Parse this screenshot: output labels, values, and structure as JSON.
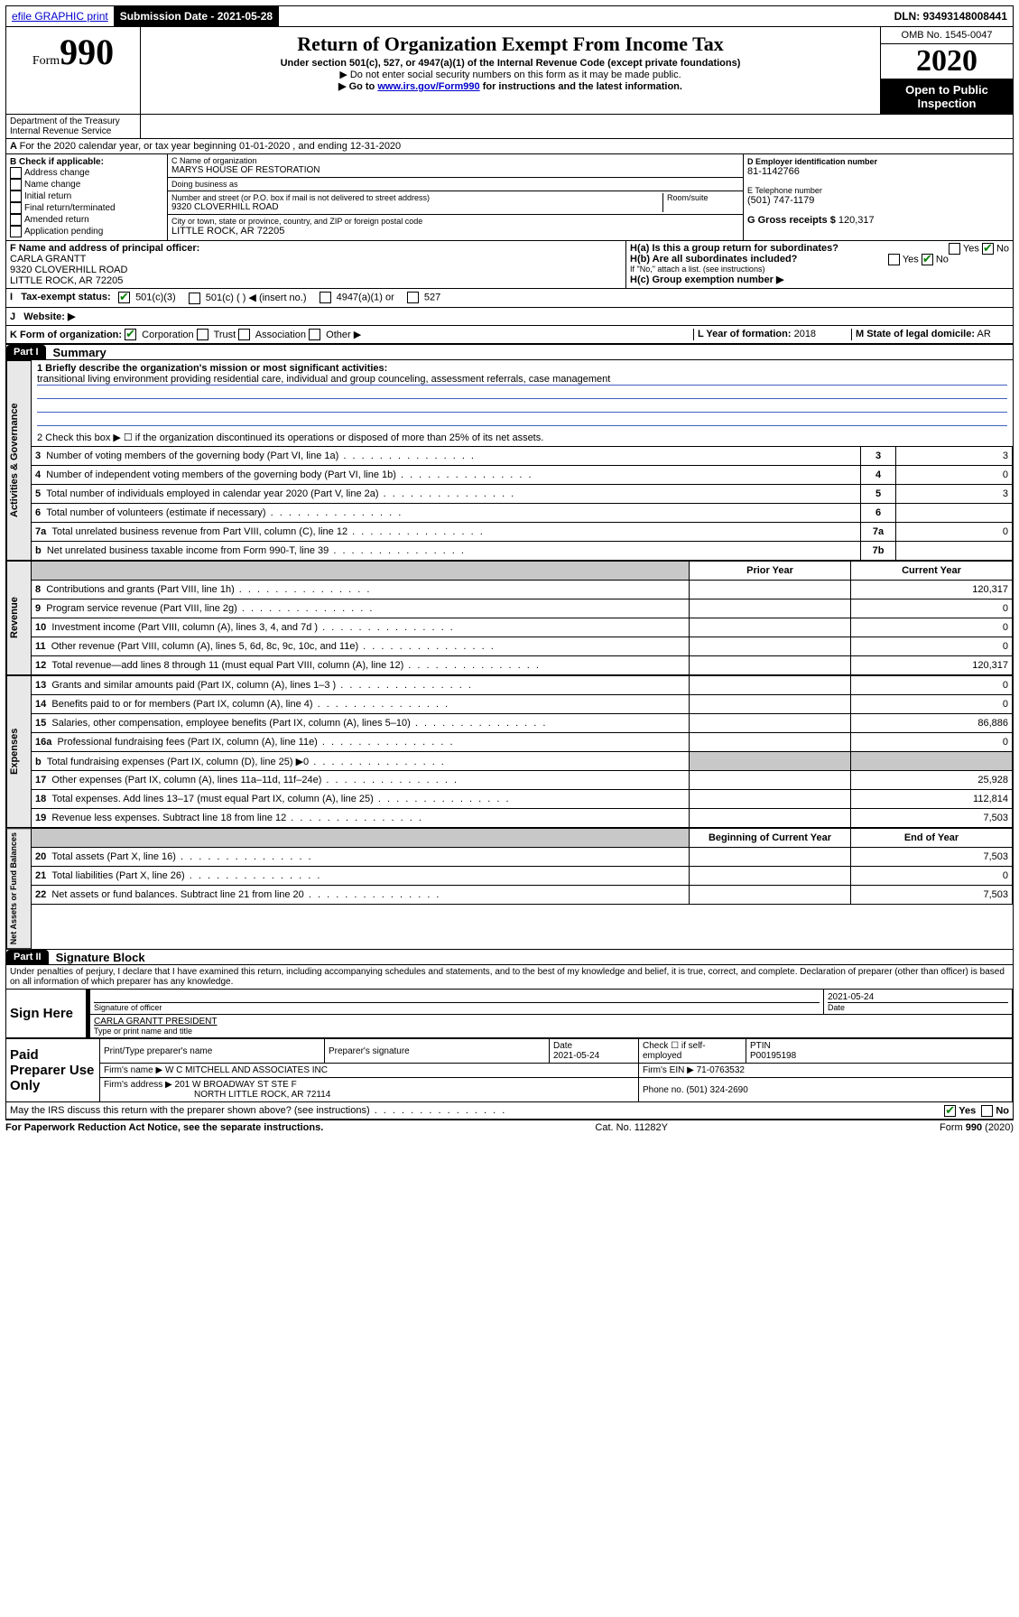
{
  "topbar": {
    "efile": "efile GRAPHIC print",
    "submission_label": "Submission Date - 2021-05-28",
    "dln_label": "DLN: 93493148008441"
  },
  "header": {
    "form_word": "Form",
    "form_number": "990",
    "title": "Return of Organization Exempt From Income Tax",
    "subtitle": "Under section 501(c), 527, or 4947(a)(1) of the Internal Revenue Code (except private foundations)",
    "note1": "▶ Do not enter social security numbers on this form as it may be made public.",
    "note2_pre": "▶ Go to ",
    "note2_link": "www.irs.gov/Form990",
    "note2_post": " for instructions and the latest information.",
    "omb": "OMB No. 1545-0047",
    "year": "2020",
    "open": "Open to Public Inspection",
    "dept": "Department of the Treasury\nInternal Revenue Service"
  },
  "periodA": "For the 2020 calendar year, or tax year beginning 01-01-2020    , and ending 12-31-2020",
  "boxB": {
    "label": "B Check if applicable:",
    "opts": [
      "Address change",
      "Name change",
      "Initial return",
      "Final return/terminated",
      "Amended return",
      "Application pending"
    ]
  },
  "boxC": {
    "name_label": "C Name of organization",
    "name": "MARYS HOUSE OF RESTORATION",
    "dba_label": "Doing business as",
    "addr_label": "Number and street (or P.O. box if mail is not delivered to street address)",
    "room_label": "Room/suite",
    "addr": "9320 CLOVERHILL ROAD",
    "city_label": "City or town, state or province, country, and ZIP or foreign postal code",
    "city": "LITTLE ROCK, AR  72205"
  },
  "boxD": {
    "label": "D Employer identification number",
    "val": "81-1142766"
  },
  "boxE": {
    "label": "E Telephone number",
    "val": "(501) 747-1179"
  },
  "boxG": {
    "label": "G Gross receipts $",
    "val": "120,317"
  },
  "boxF": {
    "label": "F  Name and address of principal officer:",
    "lines": [
      "CARLA GRANTT",
      "9320 CLOVERHILL ROAD",
      "LITTLE ROCK, AR  72205"
    ]
  },
  "boxH": {
    "a": "H(a)  Is this a group return for subordinates?",
    "b": "H(b)  Are all subordinates included?",
    "note": "If \"No,\" attach a list. (see instructions)",
    "c": "H(c)  Group exemption number ▶"
  },
  "boxI": "Tax-exempt status:",
  "boxI_opts": [
    "501(c)(3)",
    "501(c) (  ) ◀ (insert no.)",
    "4947(a)(1) or",
    "527"
  ],
  "boxJ": "Website: ▶",
  "boxK": "K Form of organization:",
  "boxK_opts": [
    "Corporation",
    "Trust",
    "Association",
    "Other ▶"
  ],
  "boxL": {
    "label": "L Year of formation:",
    "val": "2018"
  },
  "boxM": {
    "label": "M State of legal domicile:",
    "val": "AR"
  },
  "part1": {
    "label": "Part I",
    "title": "Summary"
  },
  "line1_label": "1  Briefly describe the organization's mission or most significant activities:",
  "line1_text": "transitional living environment providing residential care, individual and group counceling, assessment referrals, case management",
  "line2": "2   Check this box ▶ ☐  if the organization discontinued its operations or disposed of more than 25% of its net assets.",
  "governance_label": "Activities & Governance",
  "revenue_label": "Revenue",
  "expenses_label": "Expenses",
  "net_label": "Net Assets or Fund Balances",
  "col_prior": "Prior Year",
  "col_current": "Current Year",
  "col_begin": "Beginning of Current Year",
  "col_end": "End of Year",
  "rows_gov": [
    {
      "n": "3",
      "t": "Number of voting members of the governing body (Part VI, line 1a)",
      "k": "3",
      "v": "3"
    },
    {
      "n": "4",
      "t": "Number of independent voting members of the governing body (Part VI, line 1b)",
      "k": "4",
      "v": "0"
    },
    {
      "n": "5",
      "t": "Total number of individuals employed in calendar year 2020 (Part V, line 2a)",
      "k": "5",
      "v": "3"
    },
    {
      "n": "6",
      "t": "Total number of volunteers (estimate if necessary)",
      "k": "6",
      "v": ""
    },
    {
      "n": "7a",
      "t": "Total unrelated business revenue from Part VIII, column (C), line 12",
      "k": "7a",
      "v": "0"
    },
    {
      "n": "b",
      "t": "Net unrelated business taxable income from Form 990-T, line 39",
      "k": "7b",
      "v": ""
    }
  ],
  "rows_rev": [
    {
      "n": "8",
      "t": "Contributions and grants (Part VIII, line 1h)",
      "p": "",
      "c": "120,317"
    },
    {
      "n": "9",
      "t": "Program service revenue (Part VIII, line 2g)",
      "p": "",
      "c": "0"
    },
    {
      "n": "10",
      "t": "Investment income (Part VIII, column (A), lines 3, 4, and 7d )",
      "p": "",
      "c": "0"
    },
    {
      "n": "11",
      "t": "Other revenue (Part VIII, column (A), lines 5, 6d, 8c, 9c, 10c, and 11e)",
      "p": "",
      "c": "0"
    },
    {
      "n": "12",
      "t": "Total revenue—add lines 8 through 11 (must equal Part VIII, column (A), line 12)",
      "p": "",
      "c": "120,317"
    }
  ],
  "rows_exp": [
    {
      "n": "13",
      "t": "Grants and similar amounts paid (Part IX, column (A), lines 1–3 )",
      "p": "",
      "c": "0"
    },
    {
      "n": "14",
      "t": "Benefits paid to or for members (Part IX, column (A), line 4)",
      "p": "",
      "c": "0"
    },
    {
      "n": "15",
      "t": "Salaries, other compensation, employee benefits (Part IX, column (A), lines 5–10)",
      "p": "",
      "c": "86,886"
    },
    {
      "n": "16a",
      "t": "Professional fundraising fees (Part IX, column (A), line 11e)",
      "p": "",
      "c": "0"
    },
    {
      "n": "b",
      "t": "Total fundraising expenses (Part IX, column (D), line 25) ▶0",
      "p": "gray",
      "c": "gray"
    },
    {
      "n": "17",
      "t": "Other expenses (Part IX, column (A), lines 11a–11d, 11f–24e)",
      "p": "",
      "c": "25,928"
    },
    {
      "n": "18",
      "t": "Total expenses. Add lines 13–17 (must equal Part IX, column (A), line 25)",
      "p": "",
      "c": "112,814"
    },
    {
      "n": "19",
      "t": "Revenue less expenses. Subtract line 18 from line 12",
      "p": "",
      "c": "7,503"
    }
  ],
  "rows_net": [
    {
      "n": "20",
      "t": "Total assets (Part X, line 16)",
      "p": "",
      "c": "7,503"
    },
    {
      "n": "21",
      "t": "Total liabilities (Part X, line 26)",
      "p": "",
      "c": "0"
    },
    {
      "n": "22",
      "t": "Net assets or fund balances. Subtract line 21 from line 20",
      "p": "",
      "c": "7,503"
    }
  ],
  "part2": {
    "label": "Part II",
    "title": "Signature Block"
  },
  "declaration": "Under penalties of perjury, I declare that I have examined this return, including accompanying schedules and statements, and to the best of my knowledge and belief, it is true, correct, and complete. Declaration of preparer (other than officer) is based on all information of which preparer has any knowledge.",
  "sign": {
    "here": "Sign Here",
    "sig_label": "Signature of officer",
    "date": "2021-05-24",
    "date_label": "Date",
    "name": "CARLA GRANTT  PRESIDENT",
    "name_label": "Type or print name and title"
  },
  "paid": {
    "title": "Paid Preparer Use Only",
    "c1": "Print/Type preparer's name",
    "c2": "Preparer's signature",
    "c3": "Date",
    "c3v": "2021-05-24",
    "c4": "Check ☐ if self-employed",
    "c5": "PTIN",
    "c5v": "P00195198",
    "firm_label": "Firm's name    ▶",
    "firm": "W C MITCHELL AND ASSOCIATES INC",
    "ein_label": "Firm's EIN ▶",
    "ein": "71-0763532",
    "addr_label": "Firm's address ▶",
    "addr1": "201 W BROADWAY ST STE F",
    "addr2": "NORTH LITTLE ROCK, AR  72114",
    "phone_label": "Phone no.",
    "phone": "(501) 324-2690"
  },
  "discuss": "May the IRS discuss this return with the preparer shown above? (see instructions)",
  "footer": {
    "left": "For Paperwork Reduction Act Notice, see the separate instructions.",
    "mid": "Cat. No. 11282Y",
    "right": "Form 990 (2020)"
  },
  "yes": "Yes",
  "no": "No"
}
